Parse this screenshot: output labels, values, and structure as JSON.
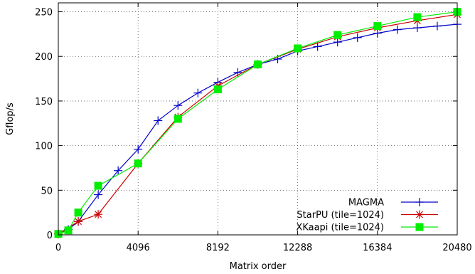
{
  "chart_data": {
    "type": "line",
    "title": "",
    "xlabel": "Matrix order",
    "ylabel": "Gflop/s",
    "xlim": [
      0,
      20480
    ],
    "ylim": [
      0,
      260
    ],
    "xticks": [
      0,
      4096,
      8192,
      12288,
      16384,
      20480
    ],
    "yticks": [
      0,
      50,
      100,
      150,
      200,
      250
    ],
    "grid": true,
    "legend_position": "bottom-right",
    "series": [
      {
        "name": "MAGMA",
        "color": "#0000cc",
        "marker": "plus",
        "x": [
          0,
          512,
          1024,
          2048,
          3072,
          4096,
          5120,
          6144,
          7168,
          8192,
          9216,
          10240,
          11264,
          12288,
          13312,
          14336,
          15360,
          16384,
          17408,
          18432,
          19456,
          20480
        ],
        "y": [
          1,
          6,
          15,
          45,
          72,
          96,
          128,
          145,
          159,
          171,
          182,
          191,
          197,
          206,
          211,
          216,
          221,
          226,
          230,
          232,
          234,
          236
        ]
      },
      {
        "name": "StarPU (tile=1024)",
        "color": "#cc0000",
        "marker": "star",
        "x": [
          0,
          1024,
          2048,
          4096,
          6144,
          8192,
          10240,
          12288,
          14336,
          16384,
          18432,
          20480
        ],
        "y": [
          1,
          15,
          23,
          80,
          132,
          167,
          191,
          208,
          222,
          232,
          240,
          247
        ]
      },
      {
        "name": "XKaapi (tile=1024)",
        "color": "#00ee00",
        "marker": "square",
        "x": [
          0,
          512,
          1024,
          2048,
          4096,
          6144,
          8192,
          10240,
          12288,
          14336,
          16384,
          18432,
          20480
        ],
        "y": [
          1,
          5,
          25,
          55,
          80,
          130,
          163,
          191,
          209,
          224,
          234,
          244,
          250
        ]
      }
    ]
  }
}
